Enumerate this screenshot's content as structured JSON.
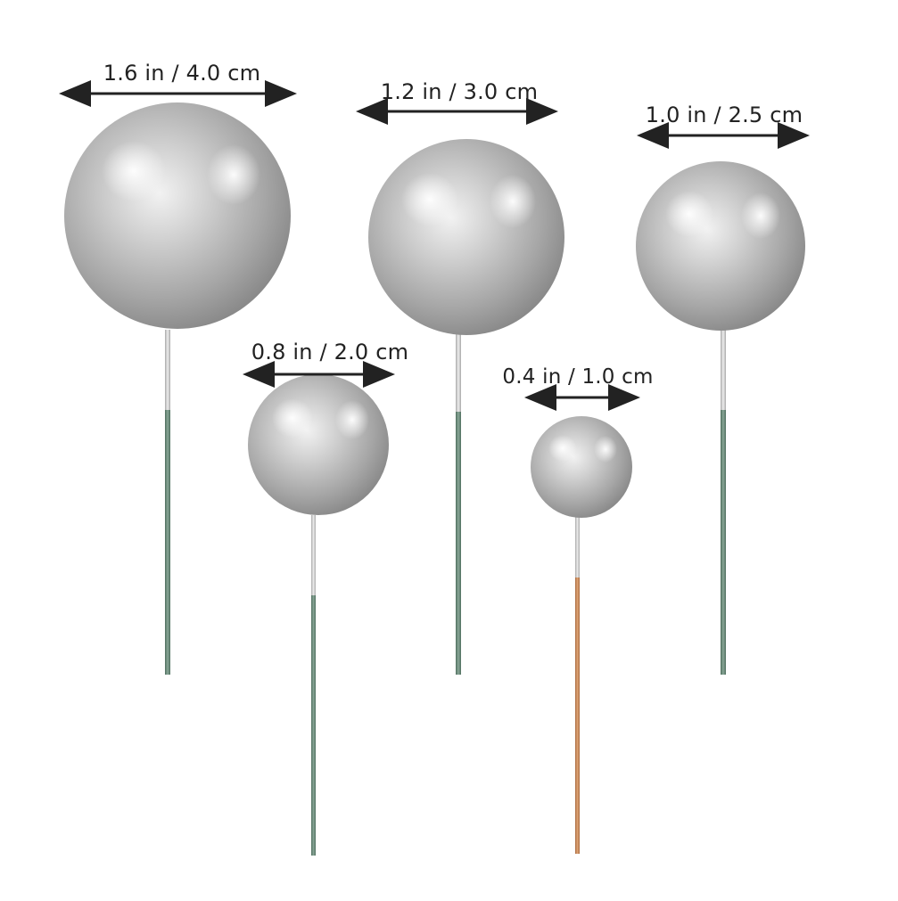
{
  "colors": {
    "background": "#ffffff",
    "pearl_light": "#f4f4f4",
    "pearl_mid": "#b9b9b9",
    "pearl_dark": "#7d7d7d",
    "stem_green": "#6f8f7e",
    "stem_copper": "#c98a5c",
    "stem_silver": "#c8c8c8",
    "arrow": "#222222"
  },
  "measurements": {
    "ball_1": "1.6 in / 4.0 cm",
    "ball_2": "1.2 in / 3.0 cm",
    "ball_3": "1.0 in / 2.5 cm",
    "ball_4": "0.8 in / 2.0 cm",
    "ball_5": "0.4 in / 1.0 cm"
  }
}
